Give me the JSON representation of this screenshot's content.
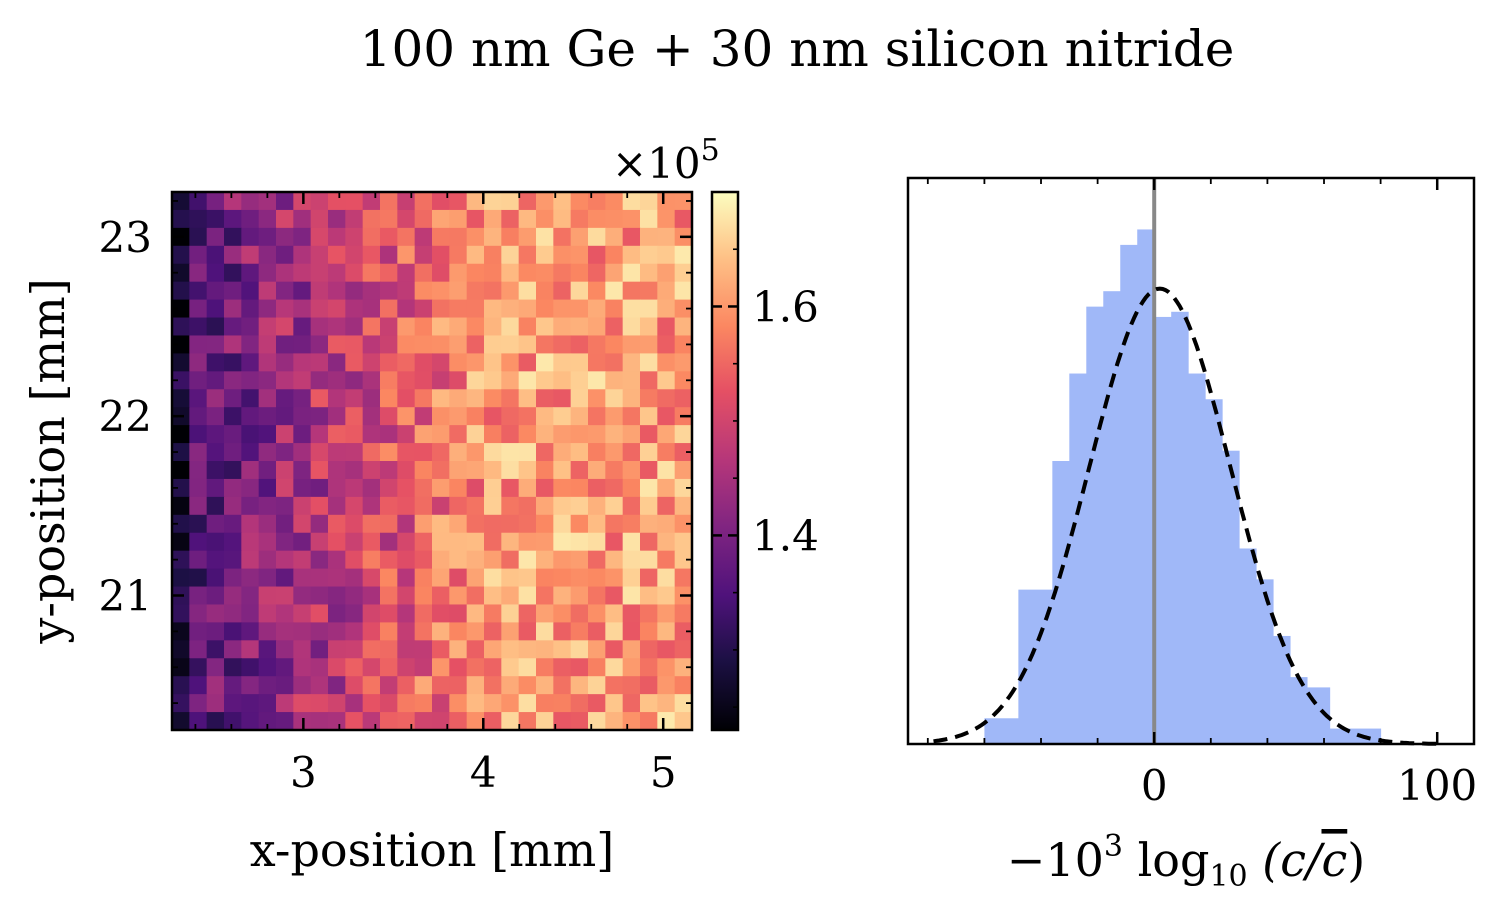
{
  "figure": {
    "title": "100 nm Ge + 30 nm silicon nitride"
  },
  "chart_data": [
    {
      "type": "heatmap",
      "title": "",
      "xlabel": "x-position [mm]",
      "ylabel": "y-position [mm]",
      "xlim": [
        2.27,
        5.16
      ],
      "ylim": [
        20.25,
        23.25
      ],
      "xticks": [
        3,
        4,
        5
      ],
      "yticks": [
        21,
        22,
        23
      ],
      "xtick_labels": [
        "3",
        "4",
        "5"
      ],
      "ytick_labels": [
        "21",
        "22",
        "23"
      ],
      "colormap": "magma",
      "colorbar": {
        "range": [
          1.23,
          1.7
        ],
        "ticks": [
          1.4,
          1.6
        ],
        "tick_labels": [
          "1.4",
          "1.6"
        ],
        "scale_label": "×10",
        "scale_exponent": "5"
      },
      "grid_size": [
        30,
        30
      ],
      "grid": false
    },
    {
      "type": "bar",
      "title": "",
      "xlabel_parts": {
        "prefix": "−10",
        "prefix_sup": "3",
        "func": " log",
        "func_sub": "10",
        "arg": " (c/",
        "arg_bar": "c",
        "close": ")"
      },
      "xlim": [
        -87,
        113
      ],
      "xticks": [
        0,
        100
      ],
      "xtick_labels": [
        "0",
        "100"
      ],
      "bin_edges": [
        -60,
        -48,
        -36,
        -30,
        -24,
        -18,
        -12,
        -6,
        0,
        6,
        12,
        18,
        24,
        30,
        36,
        42,
        48,
        54,
        62,
        80
      ],
      "counts": [
        0.05,
        0.3,
        0.55,
        0.72,
        0.85,
        0.88,
        0.97,
        1.0,
        0.83,
        0.84,
        0.72,
        0.67,
        0.57,
        0.38,
        0.32,
        0.21,
        0.13,
        0.11,
        0.03
      ],
      "bar_color": "#a0b8f8",
      "fit": {
        "type": "gaussian",
        "mean": 2,
        "sigma": 25,
        "peak": 0.885,
        "style": "dashed",
        "color": "#000000"
      },
      "reference_line": {
        "x": 0,
        "color": "#888888"
      },
      "ylim": [
        0,
        1.1
      ],
      "show_yticks": false
    }
  ]
}
